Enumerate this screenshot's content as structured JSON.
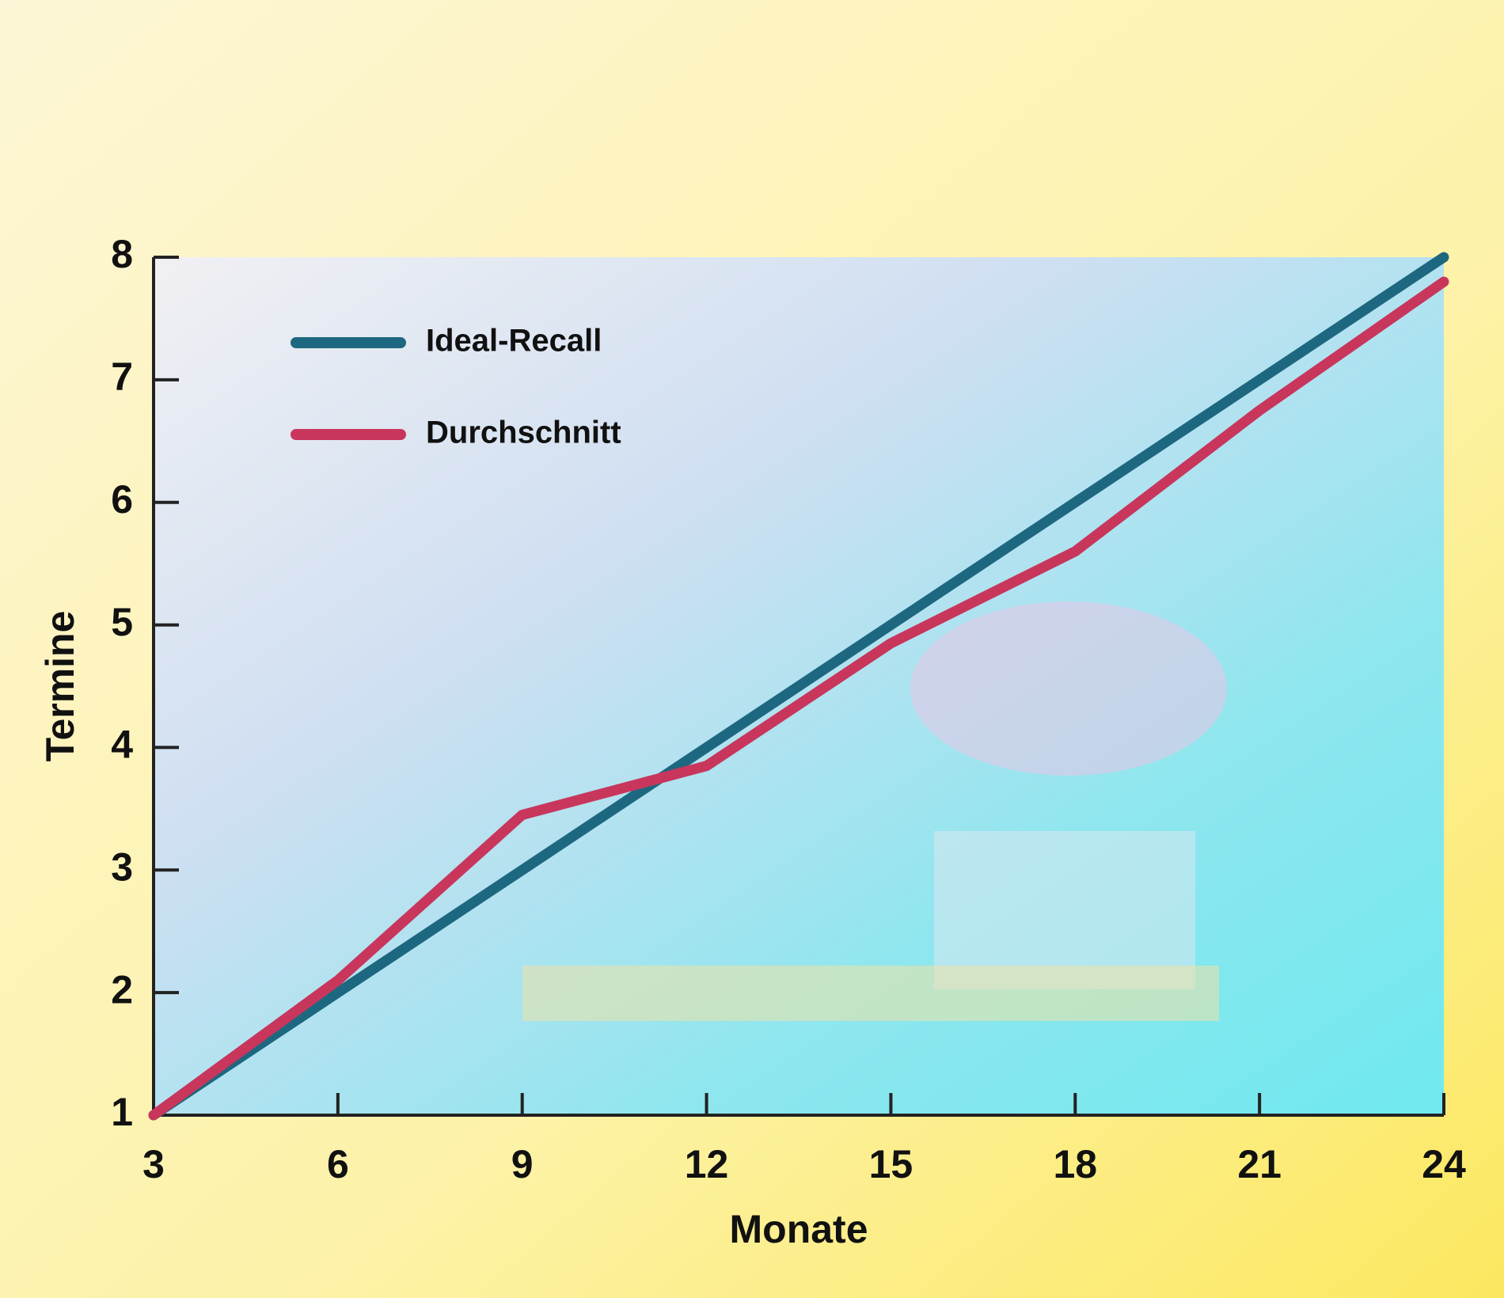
{
  "chart_data": {
    "type": "line",
    "x_label": "Monate",
    "y_label": "Termine",
    "x": [
      3,
      6,
      9,
      12,
      15,
      18,
      21,
      24
    ],
    "series": [
      {
        "name": "Ideal-Recall",
        "color": "#1d6880",
        "values": [
          1,
          2,
          3,
          4,
          5,
          6,
          7,
          8
        ]
      },
      {
        "name": "Durchschnitt",
        "color": "#c8365c",
        "values": [
          1,
          2.1,
          3.45,
          3.85,
          4.85,
          5.6,
          6.75,
          7.8
        ]
      }
    ],
    "xlim": [
      3,
      24
    ],
    "xticks": [
      3,
      6,
      9,
      12,
      15,
      18,
      21,
      24
    ],
    "ylim": [
      1,
      8
    ],
    "yticks": [
      1,
      2,
      3,
      4,
      5,
      6,
      7,
      8
    ],
    "grid": false,
    "legend": "upper left"
  }
}
